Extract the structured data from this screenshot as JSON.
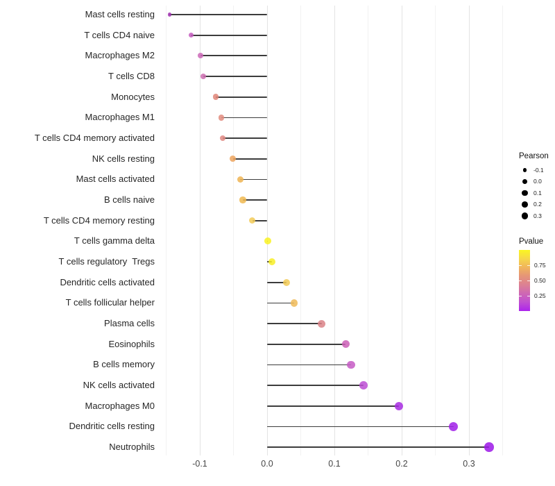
{
  "chart_data": {
    "type": "scatter",
    "variant": "horizontal-lollipop",
    "title": "",
    "xlabel": "",
    "ylabel": "",
    "xlim": [
      -0.16,
      0.36
    ],
    "baseline_x": 0.0,
    "grid": "vertical gridlines only, white panel background",
    "x_major_ticks": [
      -0.1,
      0.0,
      0.1,
      0.2,
      0.3
    ],
    "x_tick_labels": [
      "-0.1",
      "0.0",
      "0.1",
      "0.2",
      "0.3"
    ],
    "x_minor_gridlines": [
      -0.15,
      -0.05,
      0.05,
      0.15,
      0.25,
      0.35
    ],
    "stem_color": "#3c3c3c",
    "points": [
      {
        "label": "Mast cells resting",
        "pearson": -0.145,
        "color": "#A133B2"
      },
      {
        "label": "T cells CD4 naive",
        "pearson": -0.113,
        "color": "#C45CBE"
      },
      {
        "label": "Macrophages M2",
        "pearson": -0.099,
        "color": "#CC68B8"
      },
      {
        "label": "T cells CD8",
        "pearson": -0.095,
        "color": "#CD6DB0"
      },
      {
        "label": "Monocytes",
        "pearson": -0.076,
        "color": "#E08578"
      },
      {
        "label": "Macrophages M1",
        "pearson": -0.068,
        "color": "#E28B7E"
      },
      {
        "label": "T cells CD4 memory activated",
        "pearson": -0.066,
        "color": "#E08883"
      },
      {
        "label": "NK cells resting",
        "pearson": -0.051,
        "color": "#EDA55E"
      },
      {
        "label": "Mast cells activated",
        "pearson": -0.04,
        "color": "#EFB452"
      },
      {
        "label": "B cells naive",
        "pearson": -0.036,
        "color": "#F0B850"
      },
      {
        "label": "T cells CD4 memory resting",
        "pearson": -0.022,
        "color": "#F2CB58"
      },
      {
        "label": "T cells gamma delta",
        "pearson": 0.001,
        "color": "#F9F222"
      },
      {
        "label": "T cells regulatory  Tregs",
        "pearson": 0.007,
        "color": "#F8EE26"
      },
      {
        "label": "Dendritic cells activated",
        "pearson": 0.029,
        "color": "#F2CA55"
      },
      {
        "label": "T cells follicular helper",
        "pearson": 0.04,
        "color": "#EFBA58"
      },
      {
        "label": "Plasma cells",
        "pearson": 0.081,
        "color": "#DB8287"
      },
      {
        "label": "Eosinophils",
        "pearson": 0.117,
        "color": "#CB5FB6"
      },
      {
        "label": "B cells memory",
        "pearson": 0.125,
        "color": "#C65AC4"
      },
      {
        "label": "NK cells activated",
        "pearson": 0.143,
        "color": "#BC4CD4"
      },
      {
        "label": "Macrophages M0",
        "pearson": 0.196,
        "color": "#A72BE2"
      },
      {
        "label": "Dendritic cells resting",
        "pearson": 0.277,
        "color": "#A01EE8"
      },
      {
        "label": "Neutrophils",
        "pearson": 0.33,
        "color": "#9C17E8"
      }
    ]
  },
  "legend_pearson": {
    "title": "Pearson",
    "dot_color": "#000000",
    "items": [
      {
        "label": "-0.1",
        "value": -0.1
      },
      {
        "label": "0.0",
        "value": 0.0
      },
      {
        "label": "0.1",
        "value": 0.1
      },
      {
        "label": "0.2",
        "value": 0.2
      },
      {
        "label": "0.3",
        "value": 0.3
      }
    ]
  },
  "legend_pvalue": {
    "title": "Pvalue",
    "gradient_top_to_bottom": [
      "#FAF621",
      "#F6D74A",
      "#F0B45C",
      "#E59478",
      "#DC8193",
      "#CE67B4",
      "#C04ED2",
      "#AC24EC"
    ],
    "ticks": [
      {
        "label": "0.75",
        "p": 0.75
      },
      {
        "label": "0.50",
        "p": 0.5
      },
      {
        "label": "0.25",
        "p": 0.25
      }
    ]
  }
}
